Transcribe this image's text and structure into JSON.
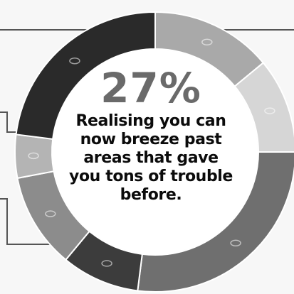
{
  "chart_data": {
    "type": "pie",
    "style": "donut",
    "highlight": {
      "value": "27%",
      "text": "Realising you can now breeze past areas that gave you tons of trouble before."
    },
    "slices": [
      {
        "value": 14,
        "color": "#a9a9a9"
      },
      {
        "value": 11,
        "color": "#d6d6d6"
      },
      {
        "value": 27,
        "color": "#6f6f6f"
      },
      {
        "value": 9,
        "color": "#3c3c3c"
      },
      {
        "value": 11,
        "color": "#8c8c8c"
      },
      {
        "value": 5,
        "color": "#b4b4b4"
      },
      {
        "value": 23,
        "color": "#2a2a2a"
      }
    ],
    "legend": "none",
    "leader_lines": true,
    "colors": {
      "background": "#f7f7f7",
      "center_fill": "#ffffff",
      "percent_text": "#6a6a6a",
      "caption_text": "#0b0b0b",
      "leader_line": "#555555"
    }
  }
}
